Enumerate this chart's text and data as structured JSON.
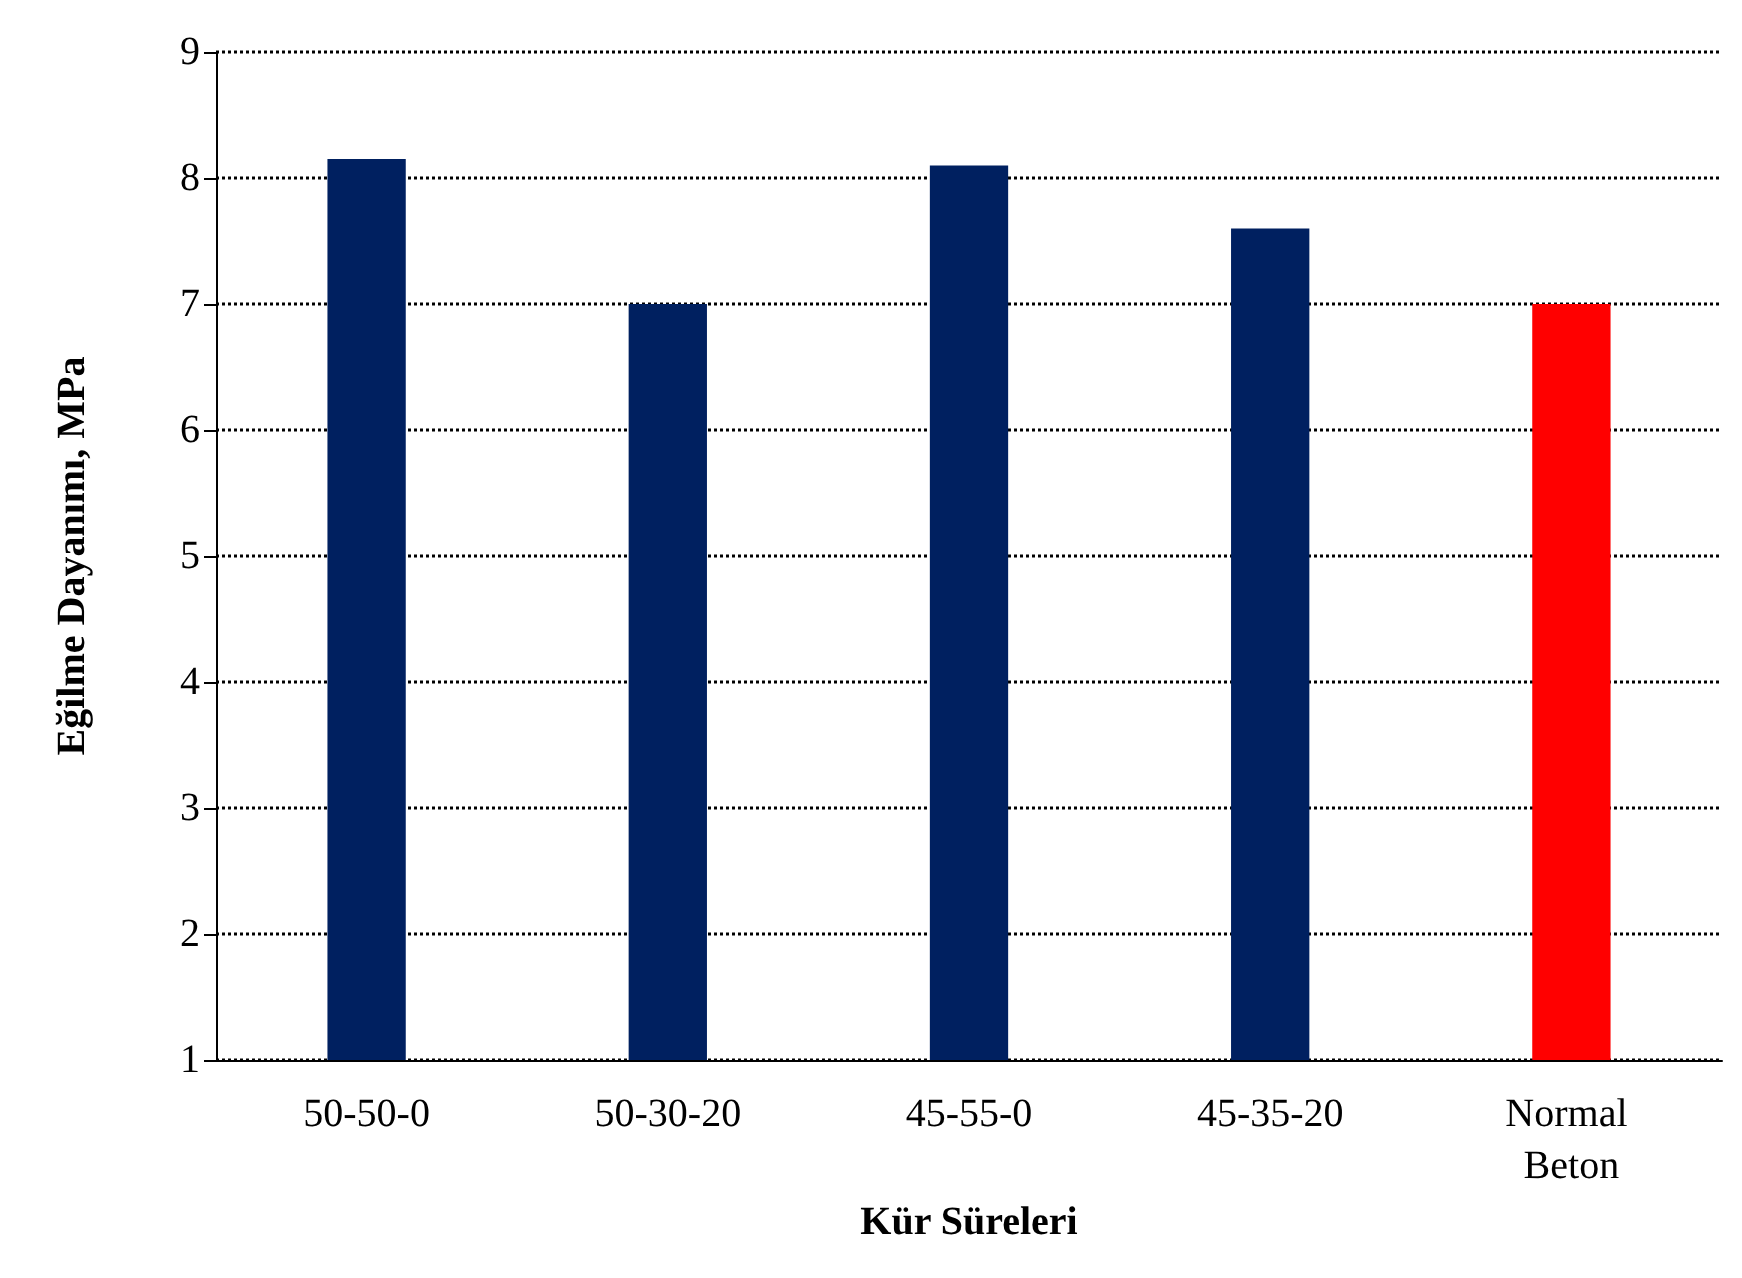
{
  "chart_data": {
    "type": "bar",
    "xlabel": "Kür Süreleri",
    "ylabel": "Eğilme Dayanımı, MPa",
    "categories": [
      "50-50-0",
      "50-30-20",
      "45-55-0",
      "45-35-20",
      "Normal Beton"
    ],
    "values": [
      8.15,
      7.0,
      8.1,
      7.6,
      7.0
    ],
    "colors": [
      "#002060",
      "#002060",
      "#002060",
      "#002060",
      "#ff0000"
    ],
    "ylim": [
      1,
      9
    ],
    "yticks": [
      1,
      2,
      3,
      4,
      5,
      6,
      7,
      8,
      9
    ],
    "grid": "y"
  }
}
